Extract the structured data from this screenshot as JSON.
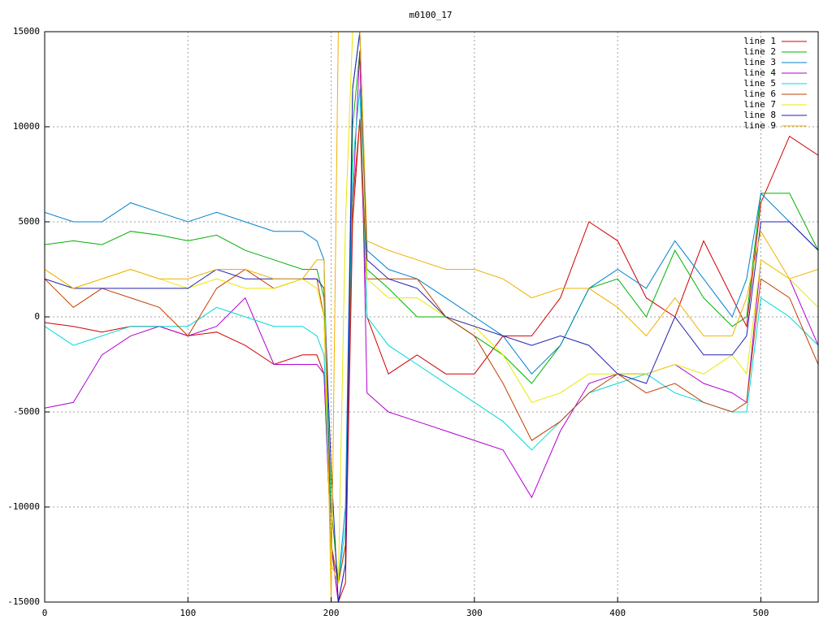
{
  "chart_data": {
    "type": "line",
    "title": "m0100_17",
    "x": [
      0,
      20,
      40,
      60,
      80,
      100,
      120,
      140,
      160,
      180,
      190,
      195,
      200,
      205,
      210,
      215,
      220,
      225,
      240,
      260,
      280,
      300,
      320,
      340,
      360,
      380,
      400,
      420,
      440,
      460,
      480,
      490,
      500,
      520,
      540
    ],
    "series": [
      {
        "name": "line 1",
        "color": "#d00000",
        "values": [
          -300,
          -500,
          -800,
          -500,
          -500,
          -1000,
          -800,
          -1500,
          -2500,
          -2000,
          -2000,
          -3000,
          -12000,
          -15000,
          -14000,
          5000,
          10400,
          0,
          -3000,
          -2000,
          -3000,
          -3000,
          -1000,
          -1000,
          1000,
          5000,
          4000,
          1000,
          0,
          4000,
          1000,
          -500,
          6000,
          9500,
          8500
        ]
      },
      {
        "name": "line 2",
        "color": "#00b000",
        "values": [
          3800,
          4000,
          3800,
          4500,
          4300,
          4000,
          4300,
          3500,
          3000,
          2500,
          2500,
          1000,
          -10000,
          -14000,
          -12000,
          10000,
          14000,
          2500,
          1500,
          0,
          0,
          -1000,
          -2000,
          -3500,
          -1500,
          1500,
          2000,
          0,
          3500,
          1000,
          -500,
          0,
          6500,
          6500,
          3500
        ]
      },
      {
        "name": "line 3",
        "color": "#0080d0",
        "values": [
          5500,
          5000,
          5000,
          6000,
          5500,
          5000,
          5500,
          5000,
          4500,
          4500,
          4000,
          3000,
          -12000,
          -14000,
          -10000,
          12000,
          15000,
          3500,
          2500,
          2000,
          1000,
          0,
          -1000,
          -3000,
          -1500,
          1500,
          2500,
          1500,
          4000,
          2000,
          0,
          2000,
          6500,
          5000,
          3500
        ]
      },
      {
        "name": "line 4",
        "color": "#b000d0",
        "values": [
          -4800,
          -4500,
          -2000,
          -1000,
          -500,
          -1000,
          -500,
          1000,
          -2500,
          -2500,
          -2500,
          -3000,
          -12000,
          -15000,
          -13000,
          6000,
          14000,
          -4000,
          -5000,
          -5500,
          -6000,
          -6500,
          -7000,
          -9500,
          -6000,
          -3500,
          -3000,
          -3000,
          -2500,
          -3500,
          -4000,
          -4500,
          3000,
          2000,
          -1500
        ]
      },
      {
        "name": "line 5",
        "color": "#00d8d8",
        "values": [
          -500,
          -1500,
          -1000,
          -500,
          -500,
          -500,
          500,
          0,
          -500,
          -500,
          -1000,
          -2000,
          -12000,
          -14000,
          -11000,
          8000,
          12000,
          0,
          -1500,
          -2500,
          -3500,
          -4500,
          -5500,
          -7000,
          -5500,
          -4000,
          -3500,
          -3000,
          -4000,
          -4500,
          -5000,
          -5000,
          1000,
          0,
          -1500
        ]
      },
      {
        "name": "line 6",
        "color": "#c04000",
        "values": [
          2000,
          500,
          1500,
          1000,
          500,
          -1000,
          1500,
          2500,
          1500,
          2000,
          2000,
          0,
          -12000,
          -14000,
          -12000,
          6000,
          10400,
          2000,
          2000,
          2000,
          0,
          -1000,
          -3500,
          -6500,
          -5500,
          -4000,
          -3000,
          -4000,
          -3500,
          -4500,
          -5000,
          -4500,
          2000,
          1000,
          -2500
        ]
      },
      {
        "name": "line 7",
        "color": "#e8e800",
        "values": [
          2500,
          1500,
          2000,
          2500,
          2000,
          1500,
          2000,
          1500,
          1500,
          2000,
          1500,
          0,
          -13000,
          -14000,
          5000,
          15000,
          15000,
          2000,
          1000,
          1000,
          0,
          -500,
          -2000,
          -4500,
          -4000,
          -3000,
          -3000,
          -3000,
          -2500,
          -3000,
          -2000,
          -3000,
          3000,
          2000,
          500
        ]
      },
      {
        "name": "line 8",
        "color": "#2020b0",
        "values": [
          2000,
          1500,
          1500,
          1500,
          1500,
          1500,
          2500,
          2000,
          2000,
          2000,
          2000,
          1500,
          -8000,
          -15000,
          -13000,
          12000,
          15000,
          3000,
          2000,
          1500,
          0,
          -500,
          -1000,
          -1500,
          -1000,
          -1500,
          -3000,
          -3500,
          0,
          -2000,
          -2000,
          -1000,
          5000,
          5000,
          3500
        ]
      },
      {
        "name": "line 9",
        "color": "#f0b000",
        "values": [
          2500,
          1500,
          2000,
          2500,
          2000,
          2000,
          2500,
          2500,
          2000,
          2000,
          3000,
          3000,
          -15000,
          15000,
          15000,
          15000,
          15000,
          4000,
          3500,
          3000,
          2500,
          2500,
          2000,
          1000,
          1500,
          1500,
          500,
          -1000,
          1000,
          -1000,
          -1000,
          1000,
          4500,
          2000,
          2500
        ]
      }
    ],
    "xlim": [
      0,
      540
    ],
    "ylim": [
      -15000,
      15000
    ],
    "xticks": [
      0,
      100,
      200,
      300,
      400,
      500
    ],
    "yticks": [
      -15000,
      -10000,
      -5000,
      0,
      5000,
      10000,
      15000
    ],
    "grid": true,
    "legend": "top right"
  }
}
